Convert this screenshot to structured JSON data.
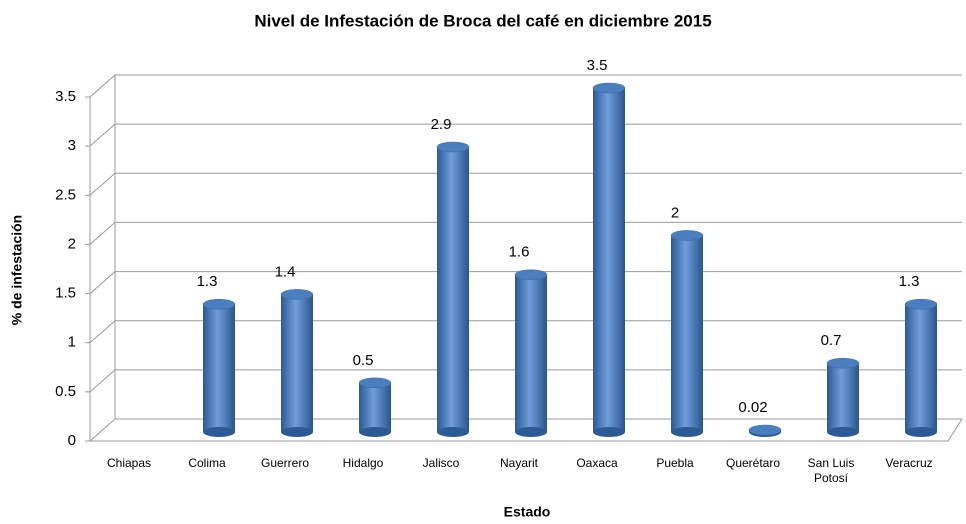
{
  "chart_data": {
    "type": "bar",
    "title": "Nivel de Infestación de Broca del café en diciembre 2015",
    "xlabel": "Estado",
    "ylabel": "% de infestación",
    "categories": [
      "Chiapas",
      "Colima",
      "Guerrero",
      "Hidalgo",
      "Jalisco",
      "Nayarit",
      "Oaxaca",
      "Puebla",
      "Querétaro",
      "San Luis Potosí",
      "Veracruz"
    ],
    "values": [
      null,
      1.3,
      1.4,
      0.5,
      2.9,
      1.6,
      3.5,
      2,
      0.02,
      0.7,
      1.3
    ],
    "color": "#4a7ebf",
    "ylim": [
      0,
      3.5
    ],
    "yticks": [
      0,
      0.5,
      1,
      1.5,
      2,
      2.5,
      3,
      3.5
    ],
    "grid": true
  }
}
